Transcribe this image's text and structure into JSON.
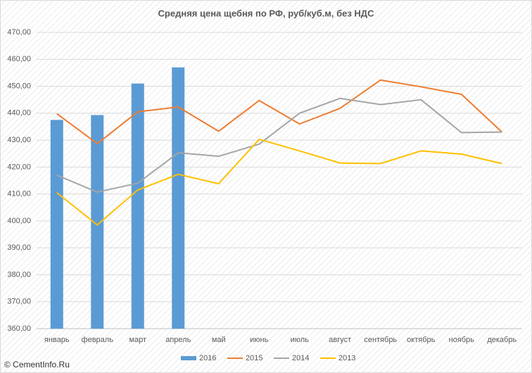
{
  "chart_data": {
    "type": "combo",
    "title": "Средняя цена щебня по РФ, руб/куб.м, без НДС",
    "watermark": "© CementInfo.Ru",
    "categories": [
      "январь",
      "февраль",
      "март",
      "апрель",
      "май",
      "июнь",
      "июль",
      "август",
      "сентябрь",
      "октябрь",
      "ноябрь",
      "декабрь"
    ],
    "series": [
      {
        "name": "2016",
        "type": "bar",
        "color": "#5b9bd5",
        "values": [
          437.5,
          439.3,
          451.0,
          457.0,
          null,
          null,
          null,
          null,
          null,
          null,
          null,
          null
        ]
      },
      {
        "name": "2015",
        "type": "line",
        "color": "#ed7d31",
        "values": [
          439.8,
          428.7,
          440.5,
          442.3,
          433.3,
          444.7,
          436.0,
          441.8,
          452.3,
          449.8,
          447.0,
          433.0
        ]
      },
      {
        "name": "2014",
        "type": "line",
        "color": "#a5a5a5",
        "values": [
          417.0,
          410.7,
          414.0,
          425.3,
          424.0,
          428.5,
          440.0,
          445.5,
          443.2,
          445.0,
          432.8,
          433.0
        ]
      },
      {
        "name": "2013",
        "type": "line",
        "color": "#ffc000",
        "values": [
          410.5,
          398.5,
          411.5,
          417.3,
          413.8,
          430.3,
          426.0,
          421.5,
          421.3,
          426.0,
          424.8,
          421.3
        ]
      }
    ],
    "ylim": [
      360,
      470
    ],
    "yticks": [
      {
        "value": 360,
        "label": "360,00"
      },
      {
        "value": 370,
        "label": "370,00"
      },
      {
        "value": 380,
        "label": "380,00"
      },
      {
        "value": 390,
        "label": "390,00"
      },
      {
        "value": 400,
        "label": "400,00"
      },
      {
        "value": 410,
        "label": "410,00"
      },
      {
        "value": 420,
        "label": "420,00"
      },
      {
        "value": 430,
        "label": "430,00"
      },
      {
        "value": 440,
        "label": "440,00"
      },
      {
        "value": 450,
        "label": "450,00"
      },
      {
        "value": 460,
        "label": "460,00"
      },
      {
        "value": 470,
        "label": "470,00"
      }
    ],
    "grid": true,
    "legend": "bottom"
  }
}
